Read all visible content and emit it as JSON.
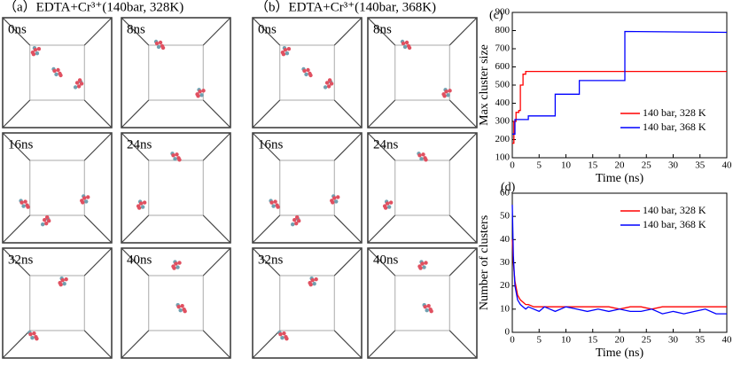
{
  "snapshots": [
    {
      "title": "（a）EDTA+Cr³⁺(140bar, 328K)",
      "frames": [
        "0ns",
        "8ns",
        "16ns",
        "24ns",
        "32ns",
        "40ns"
      ]
    },
    {
      "title": "（b）EDTA+Cr³⁺(140bar, 368K)",
      "frames": [
        "0ns",
        "8ns",
        "16ns",
        "24ns",
        "32ns",
        "40ns"
      ]
    }
  ],
  "chart_data": [
    {
      "type": "line",
      "label": "(c)",
      "xlabel": "Time (ns)",
      "ylabel": "Max cluster size",
      "xlim": [
        0,
        40
      ],
      "ylim": [
        100,
        900
      ],
      "xticks": [
        0,
        5,
        10,
        15,
        20,
        25,
        30,
        35,
        40
      ],
      "yticks": [
        100,
        200,
        300,
        400,
        500,
        600,
        700,
        800,
        900
      ],
      "legend": "lower-right",
      "series": [
        {
          "name": "140 bar, 328 K",
          "color": "#ff0000",
          "x": [
            0,
            0.3,
            0.3,
            0.7,
            0.7,
            1.2,
            1.2,
            1.5,
            1.5,
            2,
            2,
            2.5,
            2.5,
            40
          ],
          "values": [
            180,
            180,
            300,
            300,
            350,
            350,
            360,
            360,
            500,
            500,
            560,
            560,
            575,
            575
          ]
        },
        {
          "name": "140 bar, 368 K",
          "color": "#0000ff",
          "x": [
            0,
            0.5,
            0.5,
            3,
            3,
            8,
            8,
            12.5,
            12.5,
            21,
            21,
            40
          ],
          "values": [
            230,
            230,
            310,
            310,
            330,
            330,
            450,
            450,
            525,
            525,
            795,
            790
          ]
        }
      ]
    },
    {
      "type": "line",
      "label": "(d)",
      "xlabel": "Time (ns)",
      "ylabel": "Number of clusters",
      "xlim": [
        0,
        40
      ],
      "ylim": [
        0,
        60
      ],
      "xticks": [
        0,
        5,
        10,
        15,
        20,
        25,
        30,
        35,
        40
      ],
      "yticks": [
        0,
        10,
        20,
        30,
        40,
        50,
        60
      ],
      "legend": "upper-right",
      "series": [
        {
          "name": "140 bar, 328 K",
          "color": "#ff0000",
          "x": [
            0,
            0.2,
            0.5,
            1,
            1.5,
            2,
            2.5,
            3,
            4,
            5,
            6,
            7,
            8,
            10,
            12,
            14,
            16,
            18,
            20,
            22,
            24,
            26,
            28,
            30,
            32,
            34,
            36,
            38,
            40
          ],
          "values": [
            40,
            30,
            22,
            16,
            14,
            13,
            12,
            12,
            11,
            11,
            11,
            11,
            11,
            11,
            11,
            11,
            11,
            11,
            10,
            11,
            11,
            10,
            11,
            11,
            11,
            11,
            11,
            11,
            11
          ]
        },
        {
          "name": "140 bar, 368 K",
          "color": "#0000ff",
          "x": [
            0,
            0.2,
            0.5,
            1,
            1.5,
            2,
            2.5,
            3,
            4,
            5,
            6,
            7,
            8,
            10,
            12,
            14,
            16,
            18,
            20,
            22,
            24,
            26,
            28,
            30,
            32,
            34,
            36,
            38,
            40
          ],
          "values": [
            55,
            33,
            20,
            14,
            12,
            11,
            10,
            11,
            10,
            9,
            11,
            10,
            9,
            11,
            10,
            9,
            10,
            9,
            10,
            9,
            9,
            10,
            8,
            9,
            8,
            9,
            10,
            8,
            8
          ]
        }
      ]
    }
  ]
}
